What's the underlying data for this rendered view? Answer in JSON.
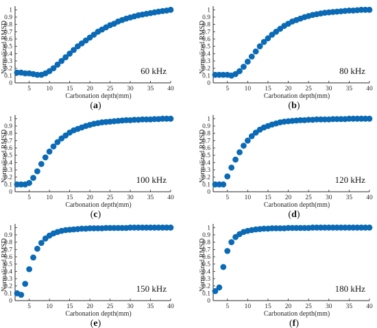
{
  "figure": {
    "marker_color": "#0b6ab5",
    "axis_color": "#262626"
  },
  "chart_data": [
    {
      "type": "scatter",
      "panel_label": "a",
      "frequency_label": "60 kHz",
      "xlabel": "Carbonation depth(mm)",
      "ylabel": "Normalized RMSD",
      "xlim": [
        1.5,
        40
      ],
      "ylim": [
        0,
        1.05
      ],
      "xticks": [
        5,
        10,
        15,
        20,
        25,
        30,
        35,
        40
      ],
      "yticks": [
        0,
        0.1,
        0.2,
        0.3,
        0.4,
        0.5,
        0.6,
        0.7,
        0.8,
        0.9,
        1
      ],
      "x": [
        2,
        3,
        4,
        5,
        6,
        7,
        8,
        9,
        10,
        11,
        12,
        13,
        14,
        15,
        16,
        17,
        18,
        19,
        20,
        21,
        22,
        23,
        24,
        25,
        26,
        27,
        28,
        29,
        30,
        31,
        32,
        33,
        34,
        35,
        36,
        37,
        38,
        39,
        40
      ],
      "y": [
        0.14,
        0.14,
        0.13,
        0.13,
        0.12,
        0.11,
        0.11,
        0.13,
        0.16,
        0.2,
        0.25,
        0.3,
        0.35,
        0.4,
        0.45,
        0.5,
        0.54,
        0.58,
        0.62,
        0.66,
        0.7,
        0.73,
        0.76,
        0.79,
        0.81,
        0.84,
        0.86,
        0.88,
        0.895,
        0.91,
        0.925,
        0.935,
        0.945,
        0.955,
        0.965,
        0.975,
        0.983,
        0.99,
        1.0
      ]
    },
    {
      "type": "scatter",
      "panel_label": "b",
      "frequency_label": "80 kHz",
      "xlabel": "Carbonation depth(mm)",
      "ylabel": "Normalized RMSD",
      "xlim": [
        1.5,
        40
      ],
      "ylim": [
        0,
        1.05
      ],
      "xticks": [
        5,
        10,
        15,
        20,
        25,
        30,
        35,
        40
      ],
      "yticks": [
        0,
        0.1,
        0.2,
        0.3,
        0.4,
        0.5,
        0.6,
        0.7,
        0.8,
        0.9,
        1
      ],
      "x": [
        2,
        3,
        4,
        5,
        6,
        7,
        8,
        9,
        10,
        11,
        12,
        13,
        14,
        15,
        16,
        17,
        18,
        19,
        20,
        21,
        22,
        23,
        24,
        25,
        26,
        27,
        28,
        29,
        30,
        31,
        32,
        33,
        34,
        35,
        36,
        37,
        38,
        39,
        40
      ],
      "y": [
        0.11,
        0.11,
        0.11,
        0.11,
        0.1,
        0.12,
        0.16,
        0.22,
        0.29,
        0.36,
        0.43,
        0.5,
        0.56,
        0.61,
        0.66,
        0.7,
        0.74,
        0.78,
        0.81,
        0.84,
        0.86,
        0.88,
        0.9,
        0.915,
        0.93,
        0.94,
        0.95,
        0.96,
        0.965,
        0.97,
        0.975,
        0.98,
        0.985,
        0.99,
        0.99,
        0.995,
        1.0,
        1.0,
        1.0
      ]
    },
    {
      "type": "scatter",
      "panel_label": "c",
      "frequency_label": "100 kHz",
      "xlabel": "Carbonation depth(mm)",
      "ylabel": "Normalized RMSD",
      "xlim": [
        1.5,
        40
      ],
      "ylim": [
        0,
        1.05
      ],
      "xticks": [
        5,
        10,
        15,
        20,
        25,
        30,
        35,
        40
      ],
      "yticks": [
        0,
        0.1,
        0.2,
        0.3,
        0.4,
        0.5,
        0.6,
        0.7,
        0.8,
        0.9,
        1
      ],
      "x": [
        2,
        3,
        4,
        5,
        6,
        7,
        8,
        9,
        10,
        11,
        12,
        13,
        14,
        15,
        16,
        17,
        18,
        19,
        20,
        21,
        22,
        23,
        24,
        25,
        26,
        27,
        28,
        29,
        30,
        31,
        32,
        33,
        34,
        35,
        36,
        37,
        38,
        39,
        40
      ],
      "y": [
        0.1,
        0.1,
        0.1,
        0.12,
        0.19,
        0.28,
        0.38,
        0.47,
        0.55,
        0.62,
        0.68,
        0.73,
        0.77,
        0.81,
        0.84,
        0.86,
        0.88,
        0.9,
        0.915,
        0.93,
        0.94,
        0.95,
        0.955,
        0.96,
        0.965,
        0.97,
        0.975,
        0.98,
        0.98,
        0.985,
        0.985,
        0.99,
        0.99,
        0.99,
        0.995,
        0.995,
        1.0,
        1.0,
        1.0
      ]
    },
    {
      "type": "scatter",
      "panel_label": "d",
      "frequency_label": "120 kHz",
      "xlabel": "Carbonation depth(mm)",
      "ylabel": "Normalized RMSD",
      "xlim": [
        1.5,
        40
      ],
      "ylim": [
        0,
        1.05
      ],
      "xticks": [
        5,
        10,
        15,
        20,
        25,
        30,
        35,
        40
      ],
      "yticks": [
        0,
        0.1,
        0.2,
        0.3,
        0.4,
        0.5,
        0.6,
        0.7,
        0.8,
        0.9,
        1
      ],
      "x": [
        2,
        3,
        4,
        5,
        6,
        7,
        8,
        9,
        10,
        11,
        12,
        13,
        14,
        15,
        16,
        17,
        18,
        19,
        20,
        21,
        22,
        23,
        24,
        25,
        26,
        27,
        28,
        29,
        30,
        31,
        32,
        33,
        34,
        35,
        36,
        37,
        38,
        39,
        40
      ],
      "y": [
        0.1,
        0.1,
        0.1,
        0.21,
        0.33,
        0.44,
        0.54,
        0.63,
        0.7,
        0.76,
        0.81,
        0.85,
        0.88,
        0.9,
        0.92,
        0.935,
        0.95,
        0.96,
        0.965,
        0.97,
        0.975,
        0.98,
        0.98,
        0.985,
        0.985,
        0.99,
        0.99,
        0.99,
        0.99,
        0.995,
        0.995,
        0.995,
        0.995,
        1.0,
        1.0,
        1.0,
        1.0,
        1.0,
        1.0
      ]
    },
    {
      "type": "scatter",
      "panel_label": "e",
      "frequency_label": "150 kHz",
      "xlabel": "Carbonation depth(mm)",
      "ylabel": "Normalized RMSD",
      "xlim": [
        1.5,
        40
      ],
      "ylim": [
        0,
        1.05
      ],
      "xticks": [
        5,
        10,
        15,
        20,
        25,
        30,
        35,
        40
      ],
      "yticks": [
        0,
        0.1,
        0.2,
        0.3,
        0.4,
        0.5,
        0.6,
        0.7,
        0.8,
        0.9,
        1
      ],
      "x": [
        2,
        3,
        4,
        5,
        6,
        7,
        8,
        9,
        10,
        11,
        12,
        13,
        14,
        15,
        16,
        17,
        18,
        19,
        20,
        21,
        22,
        23,
        24,
        25,
        26,
        27,
        28,
        29,
        30,
        31,
        32,
        33,
        34,
        35,
        36,
        37,
        38,
        39,
        40
      ],
      "y": [
        0.1,
        0.08,
        0.23,
        0.43,
        0.59,
        0.71,
        0.79,
        0.85,
        0.89,
        0.92,
        0.94,
        0.955,
        0.965,
        0.97,
        0.975,
        0.98,
        0.985,
        0.985,
        0.99,
        0.99,
        0.99,
        0.99,
        0.995,
        0.995,
        0.995,
        0.995,
        0.995,
        0.995,
        1.0,
        1.0,
        1.0,
        1.0,
        1.0,
        1.0,
        1.0,
        1.0,
        1.0,
        1.0,
        1.0
      ]
    },
    {
      "type": "scatter",
      "panel_label": "f",
      "frequency_label": "180 kHz",
      "xlabel": "Carbonation depth(mm)",
      "ylabel": "Normalized RMSD",
      "xlim": [
        1.5,
        40
      ],
      "ylim": [
        0,
        1.05
      ],
      "xticks": [
        5,
        10,
        15,
        20,
        25,
        30,
        35,
        40
      ],
      "yticks": [
        0,
        0.1,
        0.2,
        0.3,
        0.4,
        0.5,
        0.6,
        0.7,
        0.8,
        0.9,
        1
      ],
      "x": [
        2,
        3,
        4,
        5,
        6,
        7,
        8,
        9,
        10,
        11,
        12,
        13,
        14,
        15,
        16,
        17,
        18,
        19,
        20,
        21,
        22,
        23,
        24,
        25,
        26,
        27,
        28,
        29,
        30,
        31,
        32,
        33,
        34,
        35,
        36,
        37,
        38,
        39,
        40
      ],
      "y": [
        0.13,
        0.18,
        0.46,
        0.68,
        0.8,
        0.87,
        0.91,
        0.94,
        0.955,
        0.965,
        0.975,
        0.98,
        0.985,
        0.985,
        0.99,
        0.99,
        0.99,
        0.99,
        0.995,
        0.995,
        0.995,
        0.995,
        0.995,
        0.995,
        1.0,
        1.0,
        1.0,
        1.0,
        1.0,
        1.0,
        1.0,
        1.0,
        1.0,
        1.0,
        1.0,
        1.0,
        1.0,
        1.0,
        1.0
      ]
    }
  ]
}
